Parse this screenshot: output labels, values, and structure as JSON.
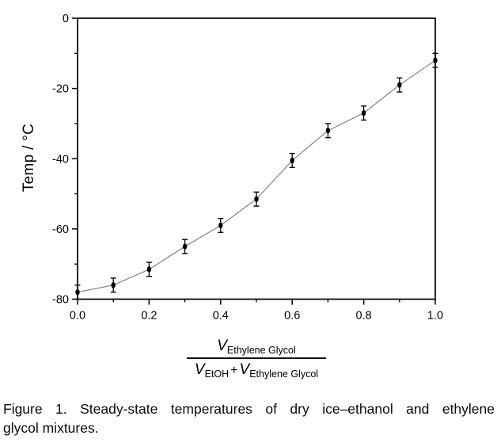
{
  "caption": {
    "line1": "Figure 1. Steady-state temperatures of dry ice–ethanol and ethylene",
    "line2": "glycol mixtures."
  },
  "chart_data": {
    "type": "scatter",
    "title": "",
    "ylabel": "Temp / °C",
    "xlabel_fraction": {
      "num_symbol": "V",
      "num_sub": "Ethylene Glycol",
      "den1_symbol": "V",
      "den1_sub": "EtOH",
      "plus": "+",
      "den2_symbol": "V",
      "den2_sub": "Ethylene Glycol"
    },
    "x": [
      0.0,
      0.1,
      0.2,
      0.3,
      0.4,
      0.5,
      0.6,
      0.7,
      0.8,
      0.9,
      1.0
    ],
    "y": [
      -78,
      -76,
      -71.5,
      -65,
      -59,
      -51.5,
      -40.5,
      -32,
      -27,
      -19,
      -12
    ],
    "yerr": [
      2,
      2,
      2,
      2,
      2,
      2,
      2,
      2,
      2,
      2,
      2
    ],
    "xlim": [
      0,
      1
    ],
    "ylim": [
      -80,
      0
    ],
    "x_major_ticks": [
      0.0,
      0.2,
      0.4,
      0.6,
      0.8,
      1.0
    ],
    "x_minor_ticks": [
      0.1,
      0.3,
      0.5,
      0.7,
      0.9
    ],
    "x_tick_labels": [
      "0.0",
      "0.2",
      "0.4",
      "0.6",
      "0.8",
      "1.0"
    ],
    "y_major_ticks": [
      0,
      -20,
      -40,
      -60,
      -80
    ],
    "y_minor_ticks": [
      -10,
      -30,
      -50,
      -70
    ],
    "y_tick_labels": [
      "0",
      "-20",
      "-40",
      "-60",
      "-80"
    ],
    "grid": false,
    "legend": null,
    "line_color": "#7a7a7a",
    "marker_color": "#000000",
    "axis_color": "#000000"
  }
}
